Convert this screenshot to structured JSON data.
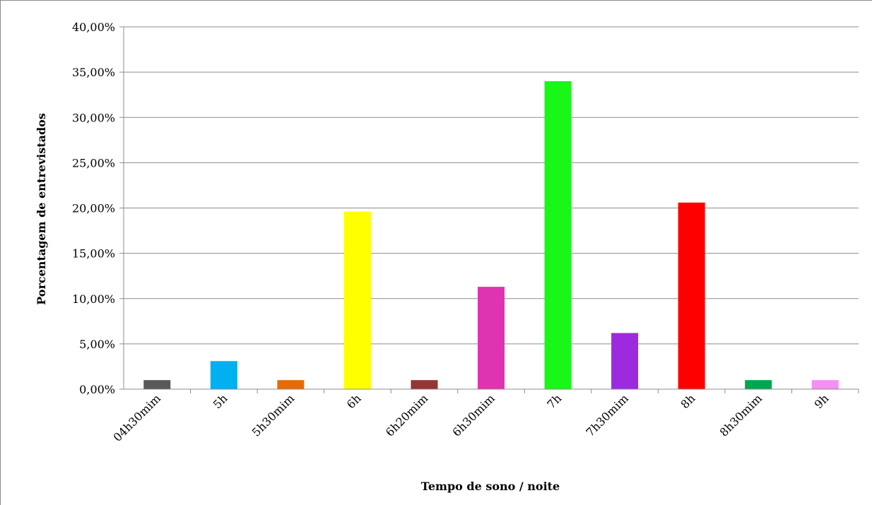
{
  "chart_data": {
    "type": "bar",
    "title": "",
    "xlabel": "Tempo de sono / noite",
    "ylabel": "Porcentagem de entrevistados",
    "categories": [
      "04h30mim",
      "5h",
      "5h30mim",
      "6h",
      "6h20mim",
      "6h30mim",
      "7h",
      "7h30mim",
      "8h",
      "8h30mim",
      "9h"
    ],
    "values": [
      1.0,
      3.1,
      1.0,
      19.6,
      1.0,
      11.3,
      34.0,
      6.2,
      20.6,
      1.0,
      1.0
    ],
    "colors": [
      "#595959",
      "#00b0f0",
      "#e36c09",
      "#ffff00",
      "#943634",
      "#e033b2",
      "#19f719",
      "#9e2ae0",
      "#ff0000",
      "#00a651",
      "#f58ff5"
    ],
    "ylim": [
      0,
      40
    ],
    "yticks": [
      0,
      5,
      10,
      15,
      20,
      25,
      30,
      35,
      40
    ],
    "ytick_labels": [
      "0,00%",
      "5,00%",
      "10,00%",
      "15,00%",
      "20,00%",
      "25,00%",
      "30,00%",
      "35,00%",
      "40,00%"
    ],
    "grid": true,
    "legend": "none"
  }
}
